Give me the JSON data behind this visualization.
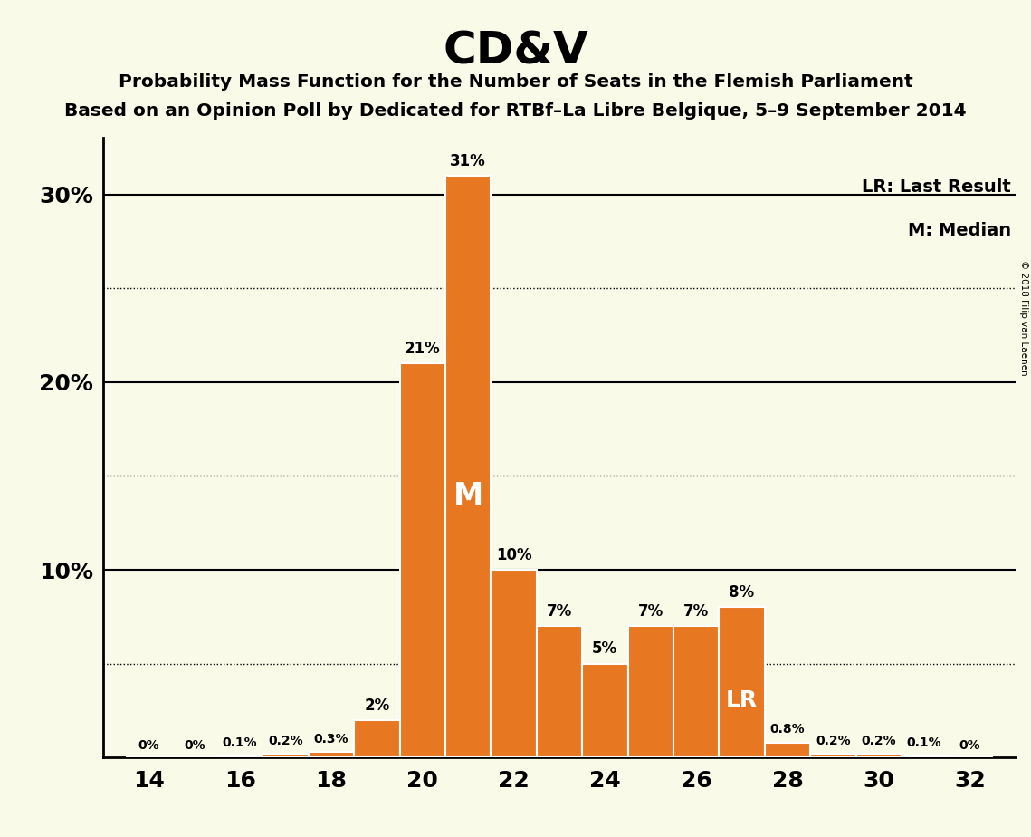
{
  "title": "CD&V",
  "subtitle1": "Probability Mass Function for the Number of Seats in the Flemish Parliament",
  "subtitle2": "Based on an Opinion Poll by Dedicated for RTBf–La Libre Belgique, 5–9 September 2014",
  "copyright": "© 2018 Filip van Laenen",
  "seats": [
    14,
    15,
    16,
    17,
    18,
    19,
    20,
    21,
    22,
    23,
    24,
    25,
    26,
    27,
    28,
    29,
    30,
    31,
    32
  ],
  "values": [
    0.0,
    0.0,
    0.1,
    0.2,
    0.3,
    2.0,
    21.0,
    31.0,
    10.0,
    7.0,
    5.0,
    7.0,
    7.0,
    8.0,
    0.8,
    0.2,
    0.2,
    0.1,
    0.0
  ],
  "labels": [
    "0%",
    "0%",
    "0.1%",
    "0.2%",
    "0.3%",
    "2%",
    "21%",
    "31%",
    "10%",
    "7%",
    "5%",
    "7%",
    "7%",
    "8%",
    "0.8%",
    "0.2%",
    "0.2%",
    "0.1%",
    "0%"
  ],
  "bar_color": "#E87722",
  "background_color": "#FAFAE8",
  "median_seat": 21,
  "lr_seat": 27,
  "legend_lr": "LR: Last Result",
  "legend_m": "M: Median",
  "ylim": [
    0,
    33
  ],
  "yticks": [
    10,
    20,
    30
  ],
  "ytick_labels": [
    "10%",
    "20%",
    "30%"
  ],
  "xticks": [
    14,
    16,
    18,
    20,
    22,
    24,
    26,
    28,
    30,
    32
  ],
  "dotted_yticks": [
    5,
    15,
    25
  ],
  "solid_yticks": [
    10,
    20,
    30
  ]
}
